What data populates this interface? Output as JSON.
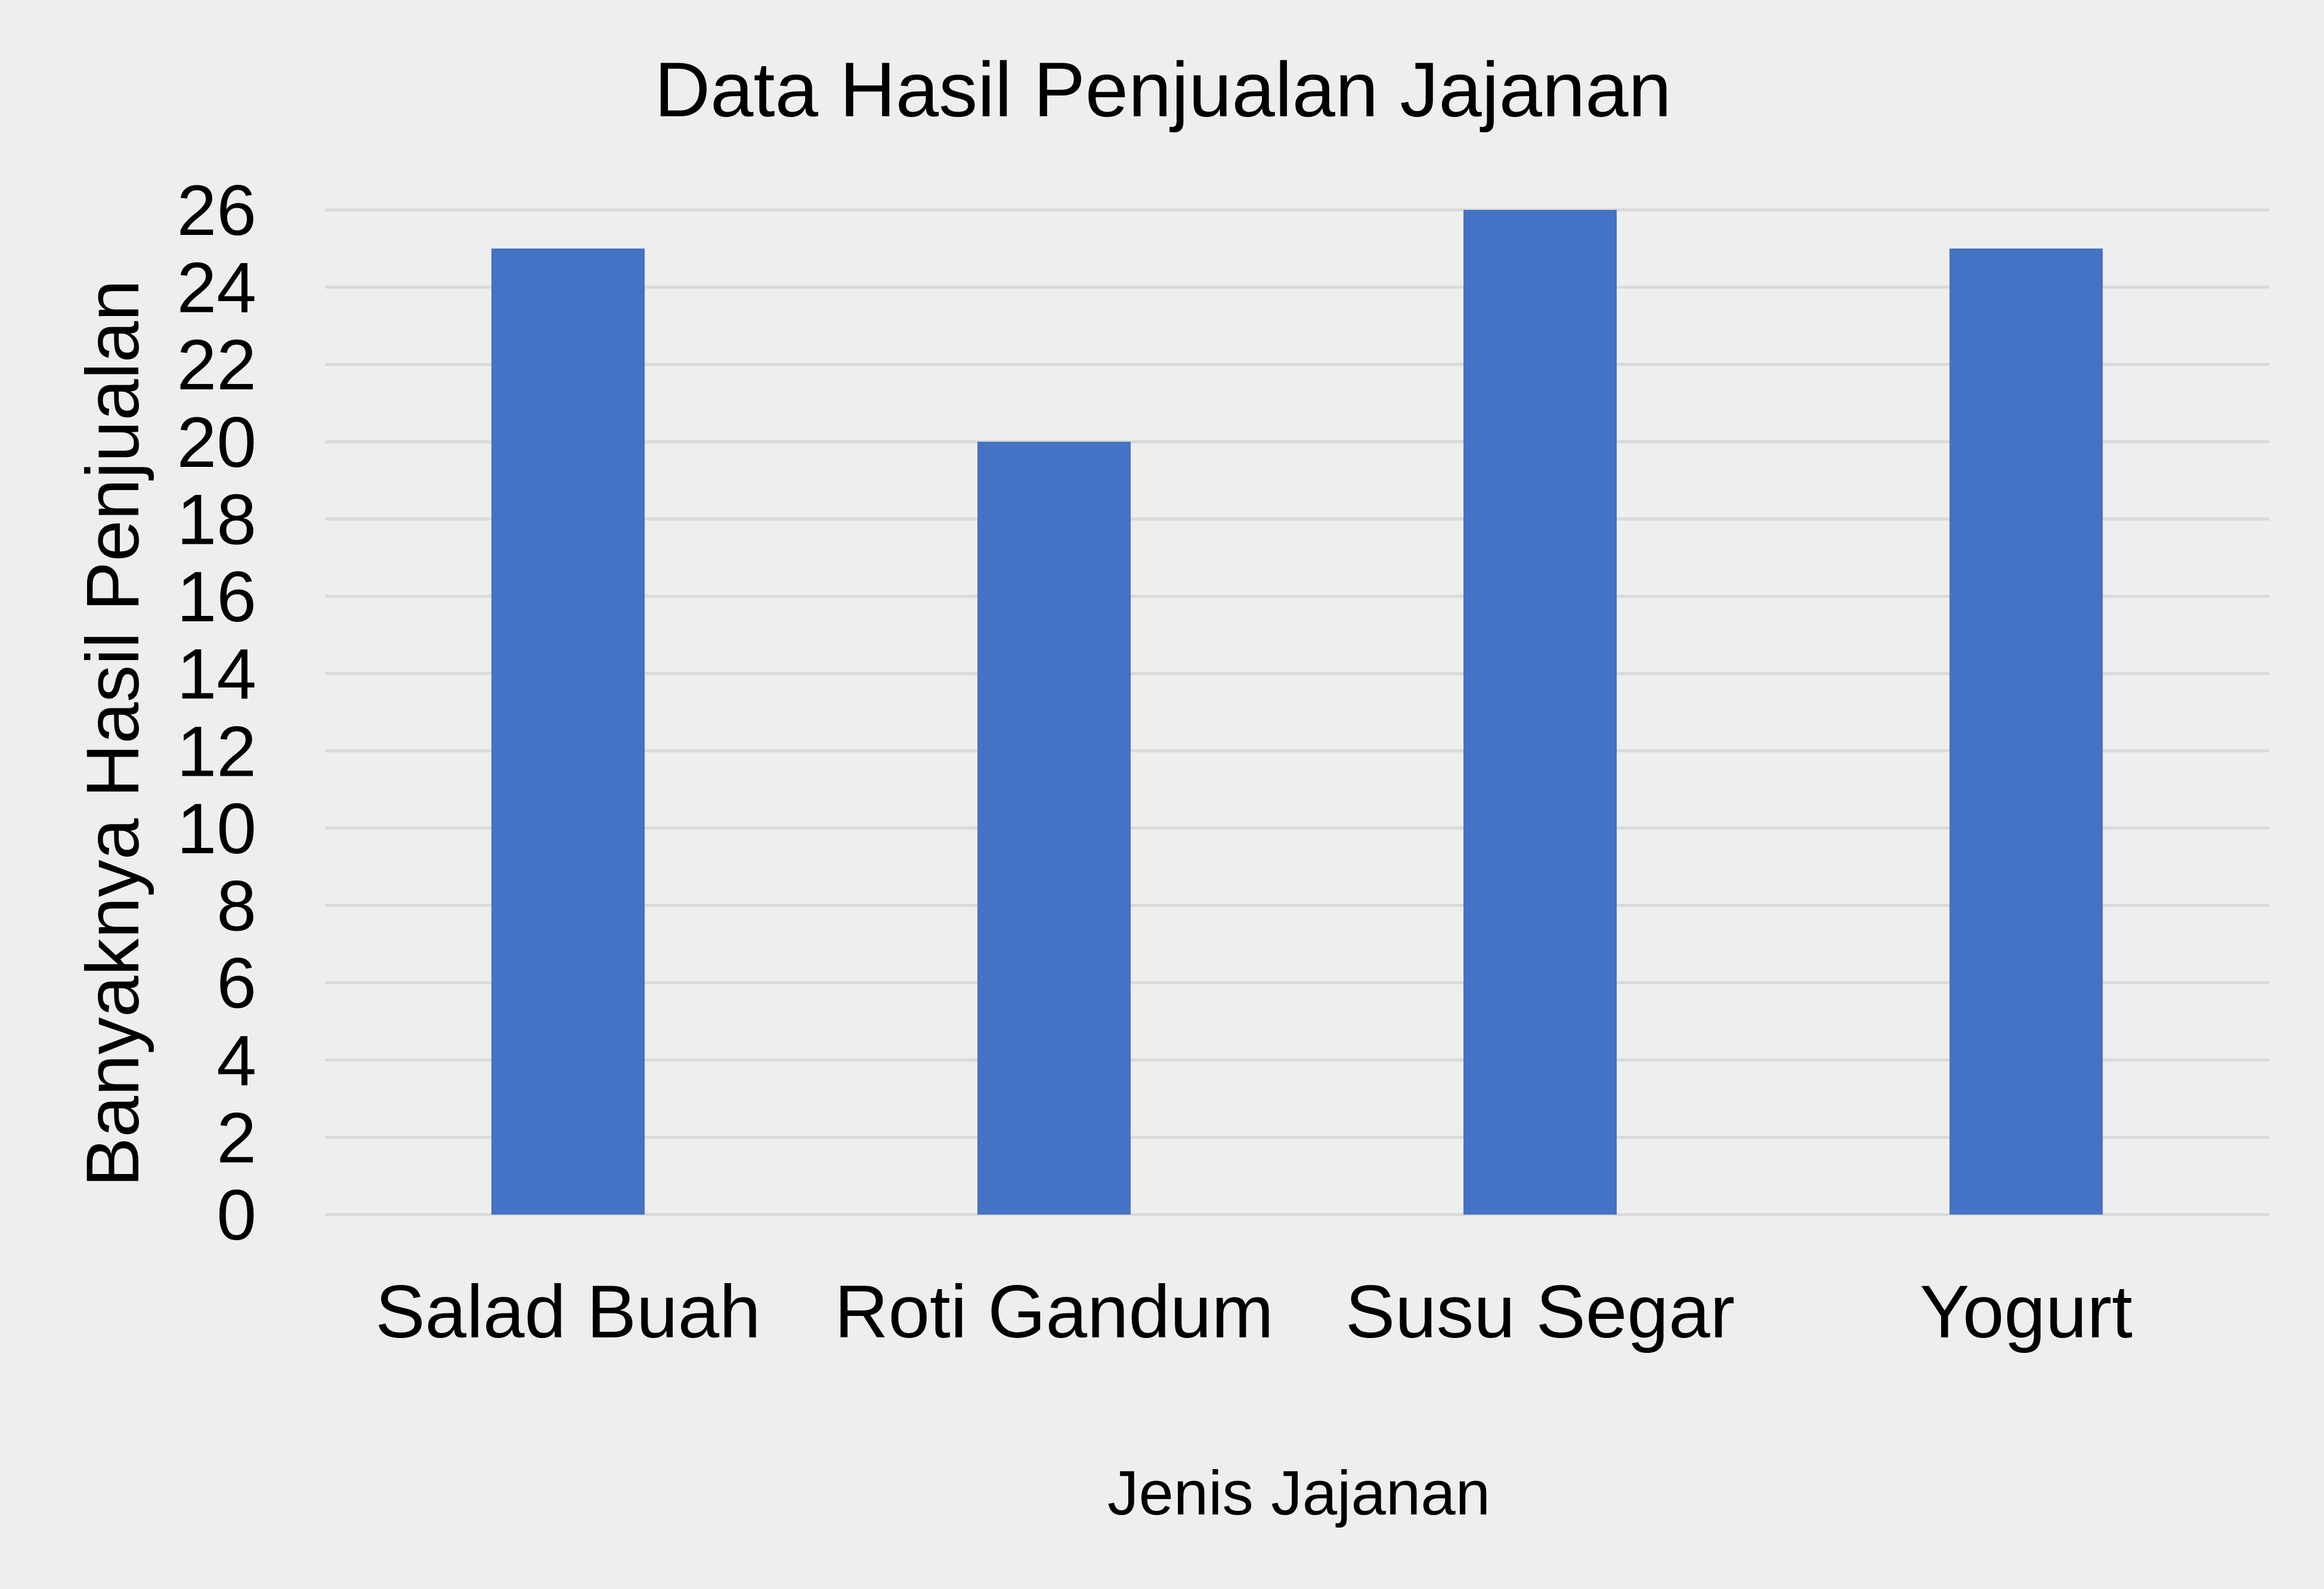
{
  "chart_data": {
    "type": "bar",
    "title": "Data Hasil Penjualan Jajanan",
    "xlabel": "Jenis Jajanan",
    "ylabel": "Banyaknya Hasil Penjualan",
    "categories": [
      "Salad Buah",
      "Roti Gandum",
      "Susu Segar",
      "Yogurt"
    ],
    "values": [
      25,
      20,
      26,
      25
    ],
    "ylim": [
      0,
      26
    ],
    "yticks": [
      0,
      2,
      4,
      6,
      8,
      10,
      12,
      14,
      16,
      18,
      20,
      22,
      24,
      26
    ],
    "grid": true,
    "legend": "none"
  },
  "colors": {
    "background": "#eeeeee",
    "bar": "#4472c4",
    "grid": "#d9d9d9",
    "text": "#000000"
  }
}
